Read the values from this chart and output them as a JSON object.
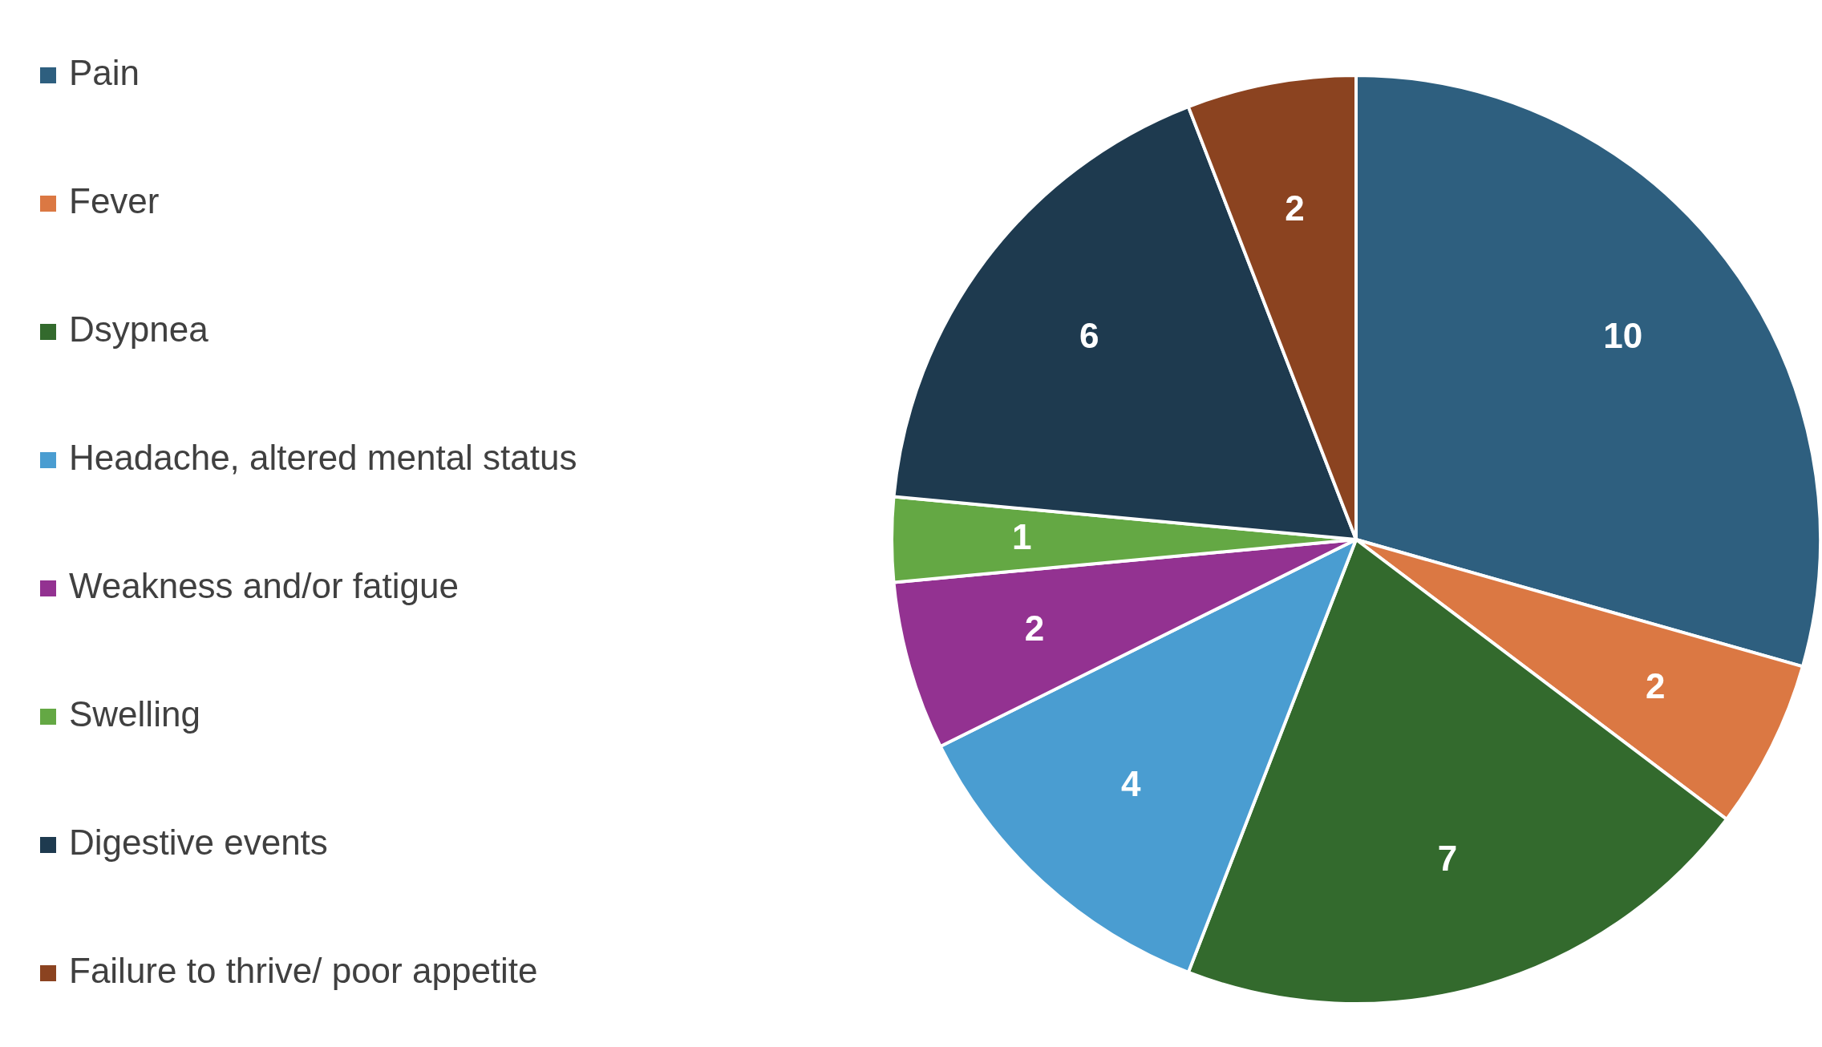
{
  "chart_data": {
    "type": "pie",
    "categories": [
      "Pain",
      "Fever",
      "Dsypnea",
      "Headache, altered mental status",
      "Weakness and/or fatigue",
      "Swelling",
      "Digestive events",
      "Failure to thrive/ poor appetite"
    ],
    "values": [
      10,
      2,
      7,
      4,
      2,
      1,
      6,
      2
    ],
    "colors": [
      "#2e5f7f",
      "#db7843",
      "#336a2d",
      "#4a9dd1",
      "#933291",
      "#64a844",
      "#1e3a4f",
      "#8b4320"
    ],
    "data_labels": true,
    "legend": "left"
  }
}
